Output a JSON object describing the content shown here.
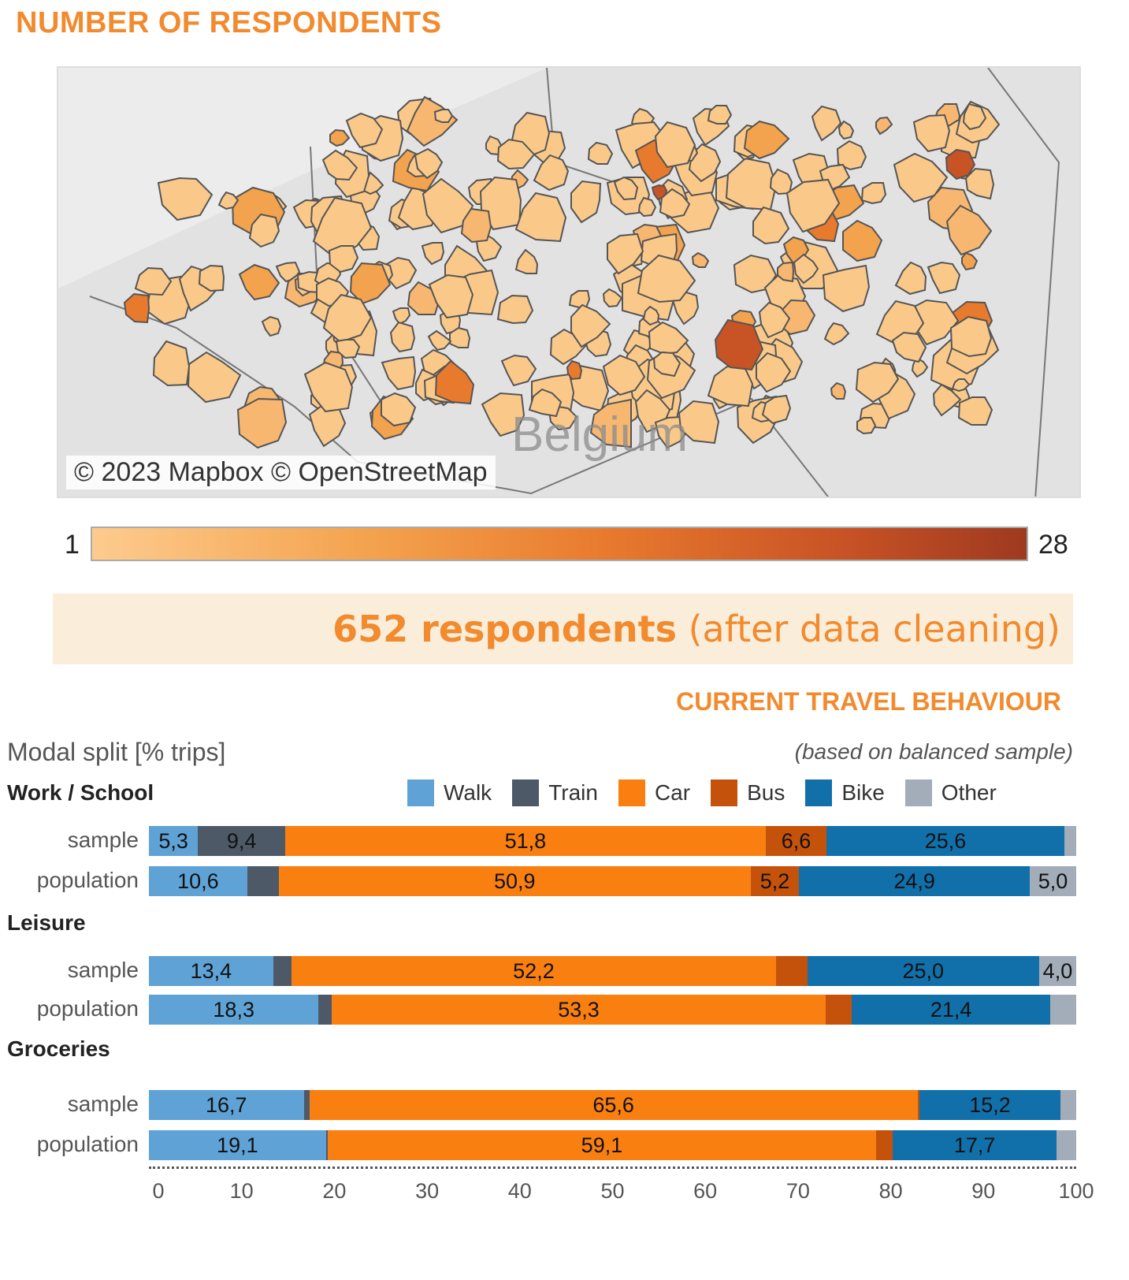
{
  "title": "NUMBER OF RESPONDENTS",
  "map": {
    "country_label": "Belgium",
    "credit": "© 2023 Mapbox © OpenStreetMap"
  },
  "colorbar": {
    "min": "1",
    "max": "28",
    "colors": [
      "#FDCB8E",
      "#9E3A20"
    ]
  },
  "banner": {
    "bold": "652 respondents",
    "rest": " (after data cleaning)"
  },
  "section_title": "CURRENT TRAVEL BEHAVIOUR",
  "chart_data": {
    "type": "bar",
    "title": "Modal split [% trips]",
    "subtitle": "(based on balanced sample)",
    "xlim": [
      0,
      100
    ],
    "xticks": [
      "0",
      "10",
      "20",
      "30",
      "40",
      "50",
      "60",
      "70",
      "80",
      "90",
      "100"
    ],
    "legend": [
      "Walk",
      "Train",
      "Car",
      "Bus",
      "Bike",
      "Other"
    ],
    "colors": {
      "Walk": "#5FA2D5",
      "Train": "#4E5968",
      "Car": "#FA7F11",
      "Bus": "#C5520A",
      "Bike": "#1170AA",
      "Other": "#A3ACB9"
    },
    "groups": [
      {
        "name": "Work / School",
        "rows": [
          {
            "label": "sample",
            "values": [
              5.3,
              9.4,
              51.8,
              6.6,
              25.6,
              1.3
            ],
            "labels": [
              "5,3",
              "9,4",
              "51,8",
              "6,6",
              "25,6",
              ""
            ]
          },
          {
            "label": "population",
            "values": [
              10.6,
              3.4,
              50.9,
              5.2,
              24.9,
              5.0
            ],
            "labels": [
              "10,6",
              "",
              "50,9",
              "5,2",
              "24,9",
              "5,0"
            ]
          }
        ]
      },
      {
        "name": "Leisure",
        "rows": [
          {
            "label": "sample",
            "values": [
              13.4,
              2.0,
              52.2,
              3.4,
              25.0,
              4.0
            ],
            "labels": [
              "13,4",
              "",
              "52,2",
              "",
              "25,0",
              "4,0"
            ]
          },
          {
            "label": "population",
            "values": [
              18.3,
              1.4,
              53.3,
              2.8,
              21.4,
              2.8
            ],
            "labels": [
              "18,3",
              "",
              "53,3",
              "",
              "21,4",
              ""
            ]
          }
        ]
      },
      {
        "name": "Groceries",
        "rows": [
          {
            "label": "sample",
            "values": [
              16.7,
              0.6,
              65.6,
              0.2,
              15.2,
              1.7
            ],
            "labels": [
              "16,7",
              "",
              "65,6",
              "",
              "15,2",
              ""
            ]
          },
          {
            "label": "population",
            "values": [
              19.1,
              0.2,
              59.1,
              1.8,
              17.7,
              2.1
            ],
            "labels": [
              "19,1",
              "",
              "59,1",
              "",
              "17,7",
              ""
            ]
          }
        ]
      }
    ]
  }
}
